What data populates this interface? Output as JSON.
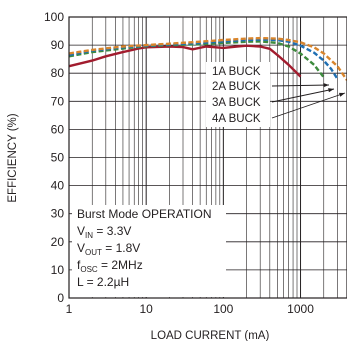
{
  "chart_data": {
    "type": "line",
    "xscale": "log",
    "xlim": [
      1,
      4000
    ],
    "ylim": [
      0,
      100
    ],
    "grid": true,
    "xlabel": "LOAD CURRENT (mA)",
    "ylabel": "EFFICIENCY (%)",
    "xticks": [
      1,
      10,
      100,
      1000
    ],
    "xtick_labels": [
      "1",
      "10",
      "100",
      "1000"
    ],
    "yticks": [
      0,
      10,
      20,
      30,
      40,
      50,
      60,
      70,
      80,
      90,
      100
    ],
    "ytick_labels": [
      "0",
      "10",
      "20",
      "30",
      "40",
      "50",
      "60",
      "70",
      "80",
      "90",
      "100"
    ],
    "series": [
      {
        "name": "1A BUCK",
        "color": "#a21c2e",
        "style": "solid",
        "x": [
          1,
          2,
          3,
          5,
          8,
          10,
          20,
          30,
          40,
          60,
          80,
          100,
          150,
          200,
          300,
          400,
          500,
          700,
          1000
        ],
        "y": [
          82.5,
          84.5,
          86.0,
          87.5,
          88.8,
          89.2,
          89.5,
          89.3,
          88.5,
          89.5,
          89.2,
          89.0,
          89.5,
          89.8,
          89.5,
          88.7,
          86.5,
          83.0,
          78.8
        ]
      },
      {
        "name": "2A BUCK",
        "color": "#3d8b3d",
        "style": "dashed",
        "x": [
          1,
          2,
          5,
          10,
          20,
          50,
          100,
          200,
          300,
          500,
          700,
          1000,
          1500,
          2000
        ],
        "y": [
          86.0,
          87.5,
          88.8,
          89.6,
          90.0,
          90.3,
          90.8,
          91.2,
          91.3,
          90.8,
          89.5,
          87.0,
          83.0,
          78.5
        ]
      },
      {
        "name": "3A BUCK",
        "color": "#1f6fb2",
        "style": "dashed",
        "x": [
          1,
          2,
          5,
          10,
          20,
          50,
          100,
          200,
          300,
          500,
          700,
          1000,
          1500,
          2000,
          2500,
          3000
        ],
        "y": [
          86.5,
          88.0,
          89.2,
          89.8,
          90.2,
          90.8,
          91.3,
          91.8,
          92.0,
          91.8,
          91.2,
          89.8,
          87.3,
          84.5,
          81.5,
          78.0
        ]
      },
      {
        "name": "4A BUCK",
        "color": "#d9852c",
        "style": "dashed",
        "x": [
          1,
          2,
          5,
          10,
          20,
          50,
          100,
          200,
          300,
          500,
          700,
          1000,
          1500,
          2000,
          3000,
          4000
        ],
        "y": [
          87.0,
          88.3,
          89.5,
          90.0,
          90.5,
          91.2,
          91.8,
          92.3,
          92.5,
          92.3,
          91.8,
          91.0,
          89.2,
          87.0,
          82.5,
          77.5
        ]
      }
    ],
    "legend_labels": [
      "1A BUCK",
      "2A BUCK",
      "3A BUCK",
      "4A BUCK"
    ],
    "annotations": {
      "mode": "Burst Mode OPERATION",
      "vin": {
        "main": "V",
        "sub": "IN",
        "rest": " = 3.3V"
      },
      "vout": {
        "main": "V",
        "sub": "OUT",
        "rest": " = 1.8V"
      },
      "fosc": {
        "main": "f",
        "sub": "OSC",
        "rest": " = 2MHz"
      },
      "inductor": "L = 2.2µH"
    }
  }
}
